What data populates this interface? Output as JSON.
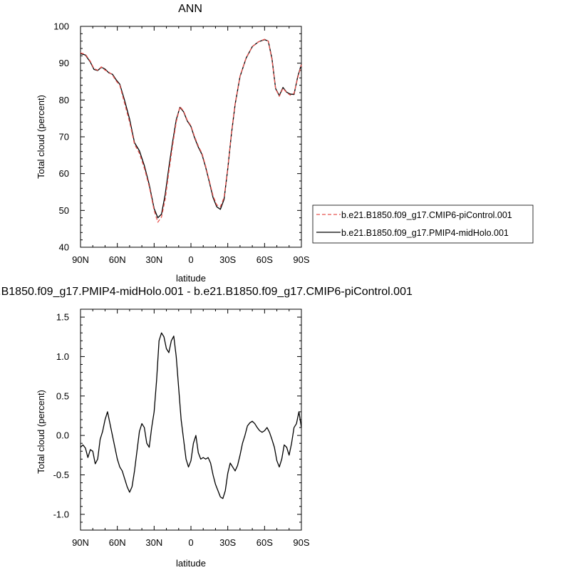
{
  "chart_data": [
    {
      "type": "line",
      "title": "ANN",
      "xlabel": "latitude",
      "ylabel": "Total cloud (percent)",
      "xlim": [
        90,
        -90
      ],
      "ylim": [
        40,
        100
      ],
      "xticks": [
        90,
        60,
        30,
        0,
        -30,
        -60,
        -90
      ],
      "xtick_labels": [
        "90N",
        "60N",
        "30N",
        "0",
        "30S",
        "60S",
        "90S"
      ],
      "yticks": [
        40,
        50,
        60,
        70,
        80,
        90,
        100
      ],
      "ytick_labels": [
        "40",
        "50",
        "60",
        "70",
        "80",
        "90",
        "100"
      ],
      "grid": false,
      "legend_position": "right",
      "series": [
        {
          "name": "b.e21.B1850.f09_g17.CMIP6-piControl.001",
          "color": "#e8534f",
          "dash": "dashed",
          "x": [
            90,
            86,
            82,
            79,
            76,
            73,
            70,
            67,
            64,
            61,
            58,
            54,
            50,
            46,
            42,
            38,
            34,
            30,
            27,
            24,
            21,
            18,
            15,
            12,
            9,
            6,
            3,
            0,
            -3,
            -6,
            -9,
            -12,
            -15,
            -18,
            -21,
            -24,
            -27,
            -30,
            -33,
            -36,
            -40,
            -45,
            -50,
            -55,
            -60,
            -63,
            -66,
            -69,
            -72,
            -75,
            -78,
            -81,
            -84,
            -87,
            -90
          ],
          "y": [
            92.8,
            92.4,
            90.5,
            88.5,
            88.1,
            89.0,
            88.1,
            87.6,
            86.8,
            85.2,
            84.0,
            79.0,
            74.0,
            68.0,
            65.5,
            61.5,
            56.5,
            50.0,
            46.8,
            48.2,
            53.0,
            60.5,
            67.5,
            74.0,
            78.2,
            77.0,
            74.5,
            73.0,
            70.0,
            67.5,
            65.5,
            62.0,
            58.0,
            54.0,
            51.5,
            51.0,
            53.5,
            61.5,
            71.0,
            79.0,
            86.5,
            91.5,
            94.5,
            95.8,
            96.5,
            96.0,
            91.0,
            83.0,
            81.0,
            83.2,
            82.0,
            81.3,
            81.8,
            86.0,
            89.6
          ]
        },
        {
          "name": "b.e21.B1850.f09_g17.PMIP4-midHolo.001",
          "color": "#000000",
          "dash": "solid",
          "x": [
            90,
            86,
            82,
            79,
            76,
            73,
            70,
            67,
            64,
            61,
            58,
            54,
            50,
            46,
            42,
            38,
            34,
            30,
            27,
            24,
            21,
            18,
            15,
            12,
            9,
            6,
            3,
            0,
            -3,
            -6,
            -9,
            -12,
            -15,
            -18,
            -21,
            -24,
            -27,
            -30,
            -33,
            -36,
            -40,
            -45,
            -50,
            -55,
            -60,
            -63,
            -66,
            -69,
            -72,
            -75,
            -78,
            -81,
            -84,
            -87,
            -90
          ],
          "y": [
            92.6,
            92.2,
            90.3,
            88.3,
            88.0,
            88.9,
            88.4,
            87.4,
            87.0,
            85.5,
            84.3,
            79.8,
            74.8,
            68.4,
            66.2,
            62.2,
            57.0,
            50.5,
            48.0,
            49.0,
            54.3,
            61.7,
            68.5,
            74.6,
            78.0,
            76.8,
            74.3,
            72.8,
            69.7,
            67.2,
            65.2,
            61.7,
            57.7,
            53.5,
            51.0,
            50.3,
            53.0,
            61.3,
            70.8,
            78.8,
            86.4,
            91.4,
            94.5,
            95.8,
            96.4,
            96.0,
            91.3,
            83.1,
            81.2,
            83.4,
            82.1,
            81.6,
            81.5,
            86.3,
            89.7
          ]
        }
      ]
    },
    {
      "type": "line",
      "title": "b.e21.B1850.f09_g17.PMIP4-midHolo.001 - b.e21.B1850.f09_g17.CMIP6-piControl.001",
      "xlabel": "latitude",
      "ylabel": "Total cloud (percent)",
      "xlim": [
        90,
        -90
      ],
      "ylim": [
        -1.2,
        1.6
      ],
      "xticks": [
        90,
        60,
        30,
        0,
        -30,
        -60,
        -90
      ],
      "xtick_labels": [
        "90N",
        "60N",
        "30N",
        "0",
        "30S",
        "60S",
        "90S"
      ],
      "yticks": [
        -1.0,
        -0.5,
        0.0,
        0.5,
        1.0,
        1.5
      ],
      "ytick_labels": [
        "-1.0",
        "-0.5",
        "0.0",
        "0.5",
        "1.0",
        "1.5"
      ],
      "grid": false,
      "series": [
        {
          "color": "#000000",
          "dash": "solid",
          "x": [
            90,
            88,
            86,
            84,
            82,
            80,
            78,
            76,
            74,
            72,
            70,
            68,
            66,
            64,
            62,
            60,
            58,
            56,
            54,
            52,
            50,
            48,
            46,
            44,
            42,
            40,
            38,
            36,
            34,
            32,
            30,
            28,
            26,
            24,
            22,
            20,
            18,
            16,
            14,
            12,
            10,
            8,
            6,
            4,
            2,
            0,
            -2,
            -4,
            -6,
            -8,
            -10,
            -12,
            -14,
            -16,
            -18,
            -20,
            -22,
            -24,
            -26,
            -28,
            -30,
            -32,
            -34,
            -36,
            -38,
            -40,
            -42,
            -44,
            -46,
            -48,
            -50,
            -52,
            -54,
            -56,
            -58,
            -60,
            -62,
            -64,
            -66,
            -68,
            -70,
            -72,
            -74,
            -76,
            -78,
            -80,
            -82,
            -84,
            -86,
            -88,
            -90
          ],
          "y": [
            -0.15,
            -0.12,
            -0.16,
            -0.28,
            -0.18,
            -0.2,
            -0.36,
            -0.3,
            -0.05,
            0.05,
            0.2,
            0.3,
            0.15,
            0.0,
            -0.15,
            -0.3,
            -0.4,
            -0.45,
            -0.55,
            -0.65,
            -0.72,
            -0.65,
            -0.45,
            -0.2,
            0.05,
            0.15,
            0.1,
            -0.1,
            -0.15,
            0.1,
            0.3,
            0.7,
            1.2,
            1.3,
            1.25,
            1.1,
            1.05,
            1.2,
            1.26,
            1.0,
            0.6,
            0.2,
            -0.05,
            -0.3,
            -0.4,
            -0.32,
            -0.1,
            0.0,
            -0.22,
            -0.3,
            -0.28,
            -0.3,
            -0.28,
            -0.35,
            -0.5,
            -0.62,
            -0.7,
            -0.78,
            -0.8,
            -0.7,
            -0.48,
            -0.35,
            -0.4,
            -0.45,
            -0.38,
            -0.25,
            -0.1,
            0.0,
            0.12,
            0.16,
            0.18,
            0.15,
            0.1,
            0.06,
            0.04,
            0.06,
            0.1,
            0.04,
            -0.05,
            -0.15,
            -0.32,
            -0.4,
            -0.3,
            -0.12,
            -0.15,
            -0.25,
            -0.1,
            0.1,
            0.15,
            0.3,
            0.1
          ]
        }
      ]
    }
  ]
}
